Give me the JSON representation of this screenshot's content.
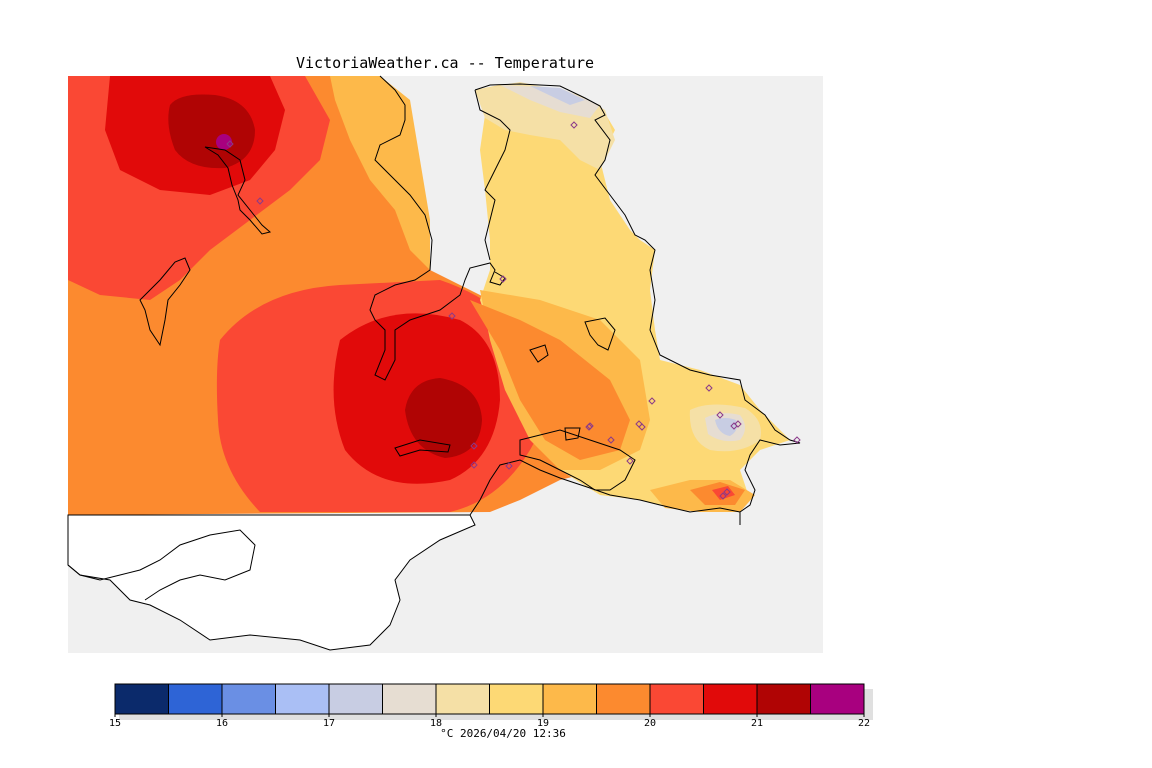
{
  "header": {
    "title": "VictoriaWeather.ca -- Temperature"
  },
  "map": {
    "variable": "Temperature",
    "land_color": "#ffffff",
    "water_color": "#f0f0f0",
    "station_marker_color": "#c060c0",
    "station_count": 22
  },
  "legend": {
    "colors": [
      "#0b2a6b",
      "#2e64d6",
      "#6a8fe4",
      "#aabff5",
      "#c8cde3",
      "#e6ddd2",
      "#f5e0a6",
      "#fdd975",
      "#fdb94a",
      "#fc8a2f",
      "#fa4834",
      "#e10a0a",
      "#b00404",
      "#a8007f"
    ],
    "ticks": [
      "15",
      "16",
      "17",
      "18",
      "19",
      "20",
      "21",
      "22"
    ],
    "min": 15,
    "max": 22,
    "step": 0.5
  },
  "footer": {
    "unit_and_timestamp": "°C  2026/04/20 12:36"
  }
}
